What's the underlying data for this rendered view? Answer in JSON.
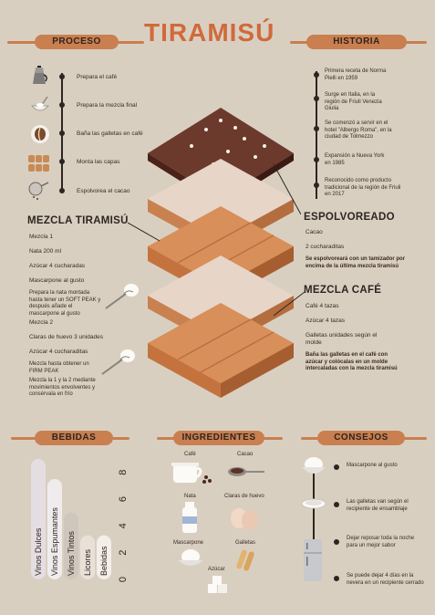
{
  "title": "TIRAMISÚ",
  "sections": {
    "proceso": "PROCESO",
    "historia": "HISTORIA",
    "bebidas": "BEBIDAS",
    "ingredientes": "INGREDIENTES",
    "consejos": "CONSEJOS"
  },
  "proceso_steps": [
    {
      "text": "Prepara el café",
      "icon": "moka-pot-icon"
    },
    {
      "text": "Prepara la mezcla final",
      "icon": "whisk-bowl-icon"
    },
    {
      "text": "Baña las galletas en café",
      "icon": "coffee-bean-icon"
    },
    {
      "text": "Monta las capas",
      "icon": "biscuits-icon"
    },
    {
      "text": "Espolvorea el cacao",
      "icon": "sieve-icon"
    }
  ],
  "historia_items": [
    "Primera receta de Norma Pielli en 1959",
    "Surge en Italia, en la región de Friuli Venezia Giulia",
    "Se comenzó a servir en el hotel \"Albergo Roma\", en la ciudad de Tolmezzo",
    "Expansión a Nueva York en 1985",
    "Reconocido como producto tradicional de la región de Friuli en 2017"
  ],
  "mezcla_tiramisu": {
    "heading": "MEZCLA TIRAMISÚ",
    "sub1": "Mezcla 1",
    "nata": "Nata 200 ml",
    "azucar1": "Azúcar 4 cucharadas",
    "mascarpone": "Mascarpone al gusto",
    "note1": "Prepara la nata montada hasta tener un SOFT PEAK y después añade el mascarpone al gusto",
    "sub2": "Mezcla 2",
    "claras": "Claras de huevo 3 unidades",
    "azucar2": "Azúcar 4 cucharaditas",
    "note2": "Mezcla hasta obtener un FIRM PEAK",
    "note3": "Mezcla la 1 y la 2 mediante movimientos envolventes y consérvala en frío"
  },
  "espolvoreado": {
    "heading": "ESPOLVOREADO",
    "cacao": "Cacao",
    "cucharaditas": "2 cucharaditas",
    "note": "Se espolvoreará con un tamizador por encima de la última mezcla tiramisú"
  },
  "mezcla_cafe": {
    "heading": "MEZCLA CAFÉ",
    "cafe": "Café 4 tazas",
    "azucar": "Azúcar 4 tazas",
    "galletas": "Galletas unidades según el molde",
    "note": "Baña las galletas en el café con azúcar y colócalas en un molde intercaladas con la mezcla tiramisú"
  },
  "chart_data": {
    "type": "bar",
    "categories": [
      "Vinos Dulces",
      "Vinos Espumantes",
      "Vinos Tintos",
      "Licores",
      "Bebidas"
    ],
    "values": [
      9,
      7.5,
      5,
      3.3,
      3.3
    ],
    "ticks": [
      "0",
      "2",
      "4",
      "6",
      "8"
    ],
    "ylim": [
      0,
      9
    ],
    "colors": [
      "#e4dde2",
      "#f0ecee",
      "#cfc6bd",
      "#e9e1d8",
      "#f3eee8"
    ]
  },
  "ingredientes": [
    {
      "label": "Café",
      "icon": "coffee-cup-icon"
    },
    {
      "label": "Cacao",
      "icon": "cocoa-spoon-icon"
    },
    {
      "label": "Nata",
      "icon": "cream-bottle-icon"
    },
    {
      "label": "Claras de huevo",
      "icon": "eggs-icon"
    },
    {
      "label": "Mascarpone",
      "icon": "mascarpone-bowl-icon"
    },
    {
      "label": "Galletas",
      "icon": "ladyfinger-icon"
    },
    {
      "label": "Azúcar",
      "icon": "sugar-cubes-icon"
    }
  ],
  "consejos": [
    {
      "text": "Mascarpone al gusto",
      "icon": "cream-bowl-icon"
    },
    {
      "text": "Las galletas van según el recipiente de ensamblaje",
      "icon": "dish-icon"
    },
    {
      "text": "Dejar reposar toda la noche para un mejor sabor",
      "icon": "clock-icon"
    },
    {
      "text": "Se puede dejar 4 días en la nevera en un recipiente cerrado",
      "icon": "fridge-icon"
    }
  ],
  "colors": {
    "background": "#d9cfc1",
    "accent": "#c97f4f",
    "title": "#d06a3b",
    "dark": "#2d2520",
    "chocolate": "#6b3a2c"
  }
}
